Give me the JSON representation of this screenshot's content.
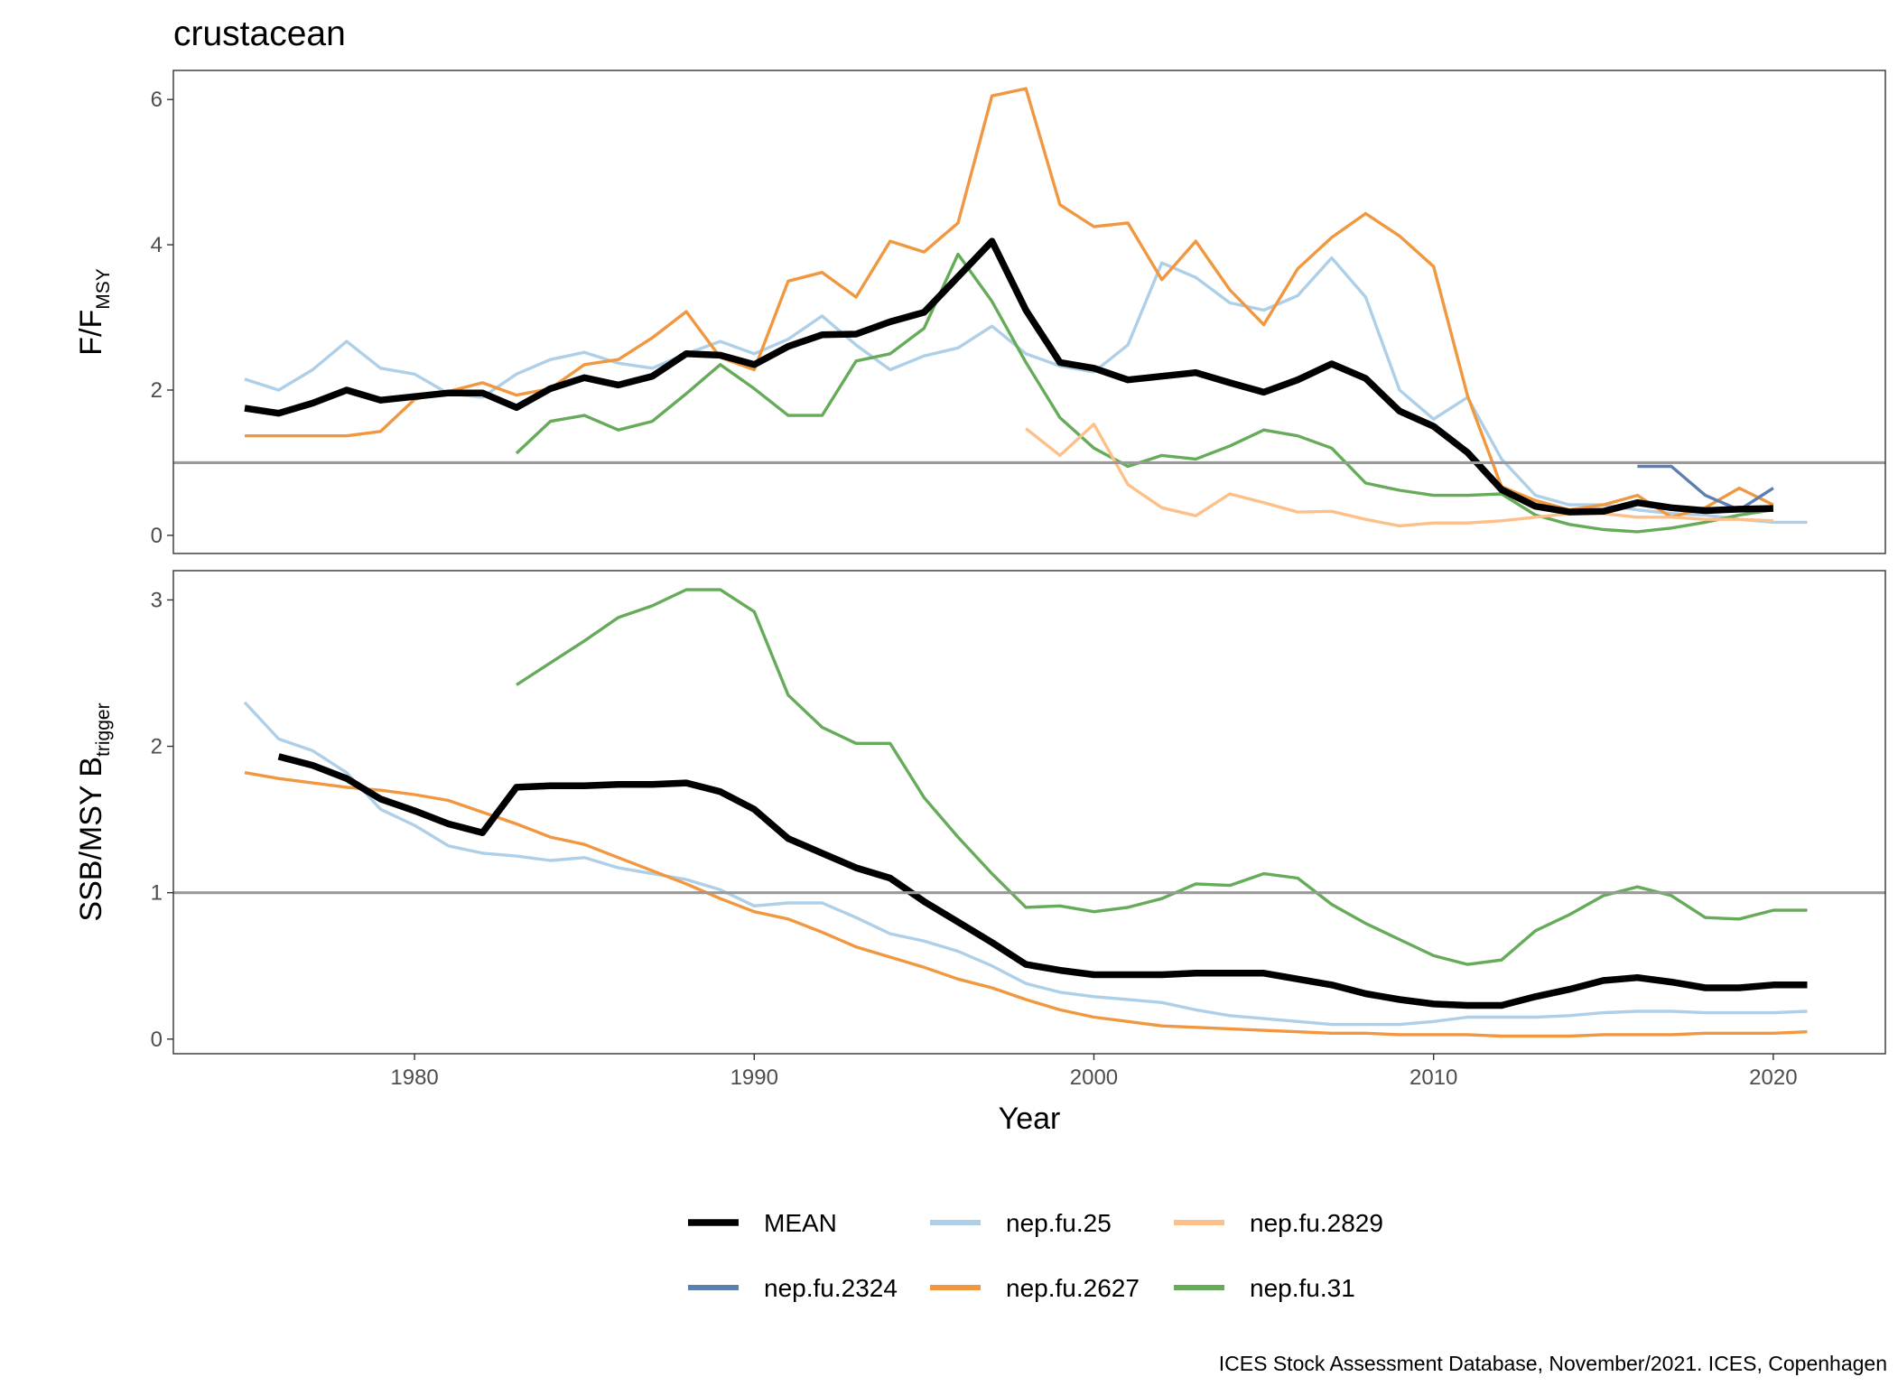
{
  "chart_data": {
    "type": "line",
    "title": "crustacean",
    "xlabel": "Year",
    "x_ticks": [
      1980,
      1990,
      2000,
      2010,
      2020
    ],
    "caption": "ICES Stock Assessment Database, November/2021. ICES, Copenhagen",
    "legend_position": "bottom",
    "series_styles": [
      {
        "name": "MEAN",
        "color": "#000000"
      },
      {
        "name": "nep.fu.25",
        "color": "#aecfe8"
      },
      {
        "name": "nep.fu.2829",
        "color": "#fdc088"
      },
      {
        "name": "nep.fu.2324",
        "color": "#5b7fb0"
      },
      {
        "name": "nep.fu.2627",
        "color": "#f0973f"
      },
      {
        "name": "nep.fu.31",
        "color": "#66ab5a"
      }
    ],
    "legend_rows": [
      [
        "MEAN",
        "nep.fu.25",
        "nep.fu.2829"
      ],
      [
        "nep.fu.2324",
        "nep.fu.2627",
        "nep.fu.31"
      ]
    ],
    "panels": [
      {
        "id": "f",
        "ylabel_main": "F/F",
        "ylabel_sub": "MSY",
        "ylim": [
          -0.25,
          6.4
        ],
        "y_ticks": [
          0,
          2,
          4,
          6
        ],
        "reference_line": 1,
        "series": [
          {
            "name": "nep.fu.25",
            "x": [
              1975,
              1976,
              1977,
              1978,
              1979,
              1980,
              1981,
              1982,
              1983,
              1984,
              1985,
              1986,
              1987,
              1988,
              1989,
              1990,
              1991,
              1992,
              1993,
              1994,
              1995,
              1996,
              1997,
              1998,
              1999,
              2000,
              2001,
              2002,
              2003,
              2004,
              2005,
              2006,
              2007,
              2008,
              2009,
              2010,
              2011,
              2012,
              2013,
              2014,
              2015,
              2016,
              2017,
              2018,
              2019,
              2020,
              2021
            ],
            "y": [
              2.15,
              2.0,
              2.28,
              2.67,
              2.3,
              2.22,
              1.95,
              1.9,
              2.22,
              2.42,
              2.52,
              2.37,
              2.3,
              2.5,
              2.67,
              2.5,
              2.7,
              3.02,
              2.62,
              2.28,
              2.47,
              2.58,
              2.88,
              2.5,
              2.33,
              2.25,
              2.62,
              3.75,
              3.55,
              3.2,
              3.1,
              3.3,
              3.82,
              3.28,
              2.0,
              1.6,
              1.9,
              1.05,
              0.55,
              0.42,
              0.42,
              0.35,
              0.3,
              0.28,
              0.22,
              0.18,
              0.18
            ]
          },
          {
            "name": "nep.fu.2627",
            "x": [
              1975,
              1976,
              1977,
              1978,
              1979,
              1980,
              1981,
              1982,
              1983,
              1984,
              1985,
              1986,
              1987,
              1988,
              1989,
              1990,
              1991,
              1992,
              1993,
              1994,
              1995,
              1996,
              1997,
              1998,
              1999,
              2000,
              2001,
              2002,
              2003,
              2004,
              2005,
              2006,
              2007,
              2008,
              2009,
              2010,
              2011,
              2012,
              2013,
              2014,
              2015,
              2016,
              2017,
              2018,
              2019,
              2020
            ],
            "y": [
              1.37,
              1.37,
              1.37,
              1.37,
              1.43,
              1.87,
              1.98,
              2.1,
              1.93,
              2.02,
              2.35,
              2.42,
              2.72,
              3.08,
              2.45,
              2.28,
              3.5,
              3.62,
              3.28,
              4.05,
              3.9,
              4.3,
              6.05,
              6.15,
              4.55,
              4.25,
              4.3,
              3.52,
              4.05,
              3.38,
              2.9,
              3.67,
              4.1,
              4.43,
              4.12,
              3.7,
              1.92,
              0.67,
              0.48,
              0.35,
              0.42,
              0.55,
              0.25,
              0.38,
              0.65,
              0.42
            ]
          },
          {
            "name": "nep.fu.31",
            "x": [
              1983,
              1984,
              1985,
              1986,
              1987,
              1988,
              1989,
              1990,
              1991,
              1992,
              1993,
              1994,
              1995,
              1996,
              1997,
              1998,
              1999,
              2000,
              2001,
              2002,
              2003,
              2004,
              2005,
              2006,
              2007,
              2008,
              2009,
              2010,
              2011,
              2012,
              2013,
              2014,
              2015,
              2016,
              2017,
              2018,
              2019,
              2020
            ],
            "y": [
              1.13,
              1.57,
              1.65,
              1.45,
              1.57,
              1.95,
              2.35,
              2.02,
              1.65,
              1.65,
              2.4,
              2.5,
              2.85,
              3.87,
              3.22,
              2.38,
              1.62,
              1.2,
              0.95,
              1.1,
              1.05,
              1.23,
              1.45,
              1.37,
              1.2,
              0.72,
              0.62,
              0.55,
              0.55,
              0.57,
              0.28,
              0.15,
              0.08,
              0.05,
              0.1,
              0.18,
              0.28,
              0.35
            ]
          },
          {
            "name": "nep.fu.2829",
            "x": [
              1998,
              1999,
              2000,
              2001,
              2002,
              2003,
              2004,
              2005,
              2006,
              2007,
              2008,
              2009,
              2010,
              2011,
              2012,
              2013,
              2014,
              2015,
              2016,
              2017,
              2018,
              2019,
              2020
            ],
            "y": [
              1.47,
              1.1,
              1.53,
              0.7,
              0.38,
              0.27,
              0.57,
              0.45,
              0.32,
              0.33,
              0.22,
              0.13,
              0.17,
              0.17,
              0.2,
              0.25,
              0.3,
              0.3,
              0.25,
              0.25,
              0.22,
              0.22,
              0.2
            ]
          },
          {
            "name": "nep.fu.2324",
            "x": [
              2016,
              2017,
              2018,
              2019,
              2020
            ],
            "y": [
              0.95,
              0.95,
              0.55,
              0.35,
              0.65
            ]
          },
          {
            "name": "MEAN",
            "x": [
              1975,
              1976,
              1977,
              1978,
              1979,
              1980,
              1981,
              1982,
              1983,
              1984,
              1985,
              1986,
              1987,
              1988,
              1989,
              1990,
              1991,
              1992,
              1993,
              1994,
              1995,
              1996,
              1997,
              1998,
              1999,
              2000,
              2001,
              2002,
              2003,
              2004,
              2005,
              2006,
              2007,
              2008,
              2009,
              2010,
              2011,
              2012,
              2013,
              2014,
              2015,
              2016,
              2017,
              2018,
              2019,
              2020
            ],
            "y": [
              1.75,
              1.68,
              1.82,
              2.0,
              1.86,
              1.91,
              1.96,
              1.96,
              1.76,
              2.02,
              2.17,
              2.07,
              2.19,
              2.5,
              2.48,
              2.35,
              2.6,
              2.76,
              2.77,
              2.94,
              3.07,
              3.56,
              4.05,
              3.1,
              2.38,
              2.3,
              2.14,
              2.19,
              2.24,
              2.1,
              1.97,
              2.14,
              2.36,
              2.16,
              1.71,
              1.5,
              1.14,
              0.63,
              0.4,
              0.32,
              0.33,
              0.45,
              0.38,
              0.34,
              0.36,
              0.37
            ]
          }
        ]
      },
      {
        "id": "ssb",
        "ylabel_main": "SSB/MSY B",
        "ylabel_sub": "trigger",
        "ylim": [
          -0.1,
          3.2
        ],
        "y_ticks": [
          0,
          1,
          2,
          3
        ],
        "reference_line": 1,
        "series": [
          {
            "name": "nep.fu.25",
            "x": [
              1975,
              1976,
              1977,
              1978,
              1979,
              1980,
              1981,
              1982,
              1983,
              1984,
              1985,
              1986,
              1987,
              1988,
              1989,
              1990,
              1991,
              1992,
              1993,
              1994,
              1995,
              1996,
              1997,
              1998,
              1999,
              2000,
              2001,
              2002,
              2003,
              2004,
              2005,
              2006,
              2007,
              2008,
              2009,
              2010,
              2011,
              2012,
              2013,
              2014,
              2015,
              2016,
              2017,
              2018,
              2019,
              2020,
              2021
            ],
            "y": [
              2.3,
              2.05,
              1.97,
              1.82,
              1.57,
              1.46,
              1.32,
              1.27,
              1.25,
              1.22,
              1.24,
              1.17,
              1.13,
              1.09,
              1.02,
              0.91,
              0.93,
              0.93,
              0.83,
              0.72,
              0.67,
              0.6,
              0.5,
              0.38,
              0.32,
              0.29,
              0.27,
              0.25,
              0.2,
              0.16,
              0.14,
              0.12,
              0.1,
              0.1,
              0.1,
              0.12,
              0.15,
              0.15,
              0.15,
              0.16,
              0.18,
              0.19,
              0.19,
              0.18,
              0.18,
              0.18,
              0.19
            ]
          },
          {
            "name": "nep.fu.2627",
            "x": [
              1975,
              1976,
              1977,
              1978,
              1979,
              1980,
              1981,
              1982,
              1983,
              1984,
              1985,
              1986,
              1987,
              1988,
              1989,
              1990,
              1991,
              1992,
              1993,
              1994,
              1995,
              1996,
              1997,
              1998,
              1999,
              2000,
              2001,
              2002,
              2003,
              2004,
              2005,
              2006,
              2007,
              2008,
              2009,
              2010,
              2011,
              2012,
              2013,
              2014,
              2015,
              2016,
              2017,
              2018,
              2019,
              2020,
              2021
            ],
            "y": [
              1.82,
              1.78,
              1.75,
              1.72,
              1.7,
              1.67,
              1.63,
              1.55,
              1.47,
              1.38,
              1.33,
              1.24,
              1.15,
              1.06,
              0.96,
              0.87,
              0.82,
              0.73,
              0.63,
              0.56,
              0.49,
              0.41,
              0.35,
              0.27,
              0.2,
              0.15,
              0.12,
              0.09,
              0.08,
              0.07,
              0.06,
              0.05,
              0.04,
              0.04,
              0.03,
              0.03,
              0.03,
              0.02,
              0.02,
              0.02,
              0.03,
              0.03,
              0.03,
              0.04,
              0.04,
              0.04,
              0.05
            ]
          },
          {
            "name": "nep.fu.31",
            "x": [
              1983,
              1984,
              1985,
              1986,
              1987,
              1988,
              1989,
              1990,
              1991,
              1992,
              1993,
              1994,
              1995,
              1996,
              1997,
              1998,
              1999,
              2000,
              2001,
              2002,
              2003,
              2004,
              2005,
              2006,
              2007,
              2008,
              2009,
              2010,
              2011,
              2012,
              2013,
              2014,
              2015,
              2016,
              2017,
              2018,
              2019,
              2020,
              2021
            ],
            "y": [
              2.42,
              2.57,
              2.72,
              2.88,
              2.96,
              3.07,
              3.07,
              2.92,
              2.35,
              2.13,
              2.02,
              2.02,
              1.65,
              1.38,
              1.13,
              0.9,
              0.91,
              0.87,
              0.9,
              0.96,
              1.06,
              1.05,
              1.13,
              1.1,
              0.92,
              0.79,
              0.68,
              0.57,
              0.51,
              0.54,
              0.74,
              0.85,
              0.98,
              1.04,
              0.98,
              0.83,
              0.82,
              0.88,
              0.88
            ]
          },
          {
            "name": "MEAN",
            "x": [
              1976,
              1977,
              1978,
              1979,
              1980,
              1981,
              1982,
              1983,
              1984,
              1985,
              1986,
              1987,
              1988,
              1989,
              1990,
              1991,
              1992,
              1993,
              1994,
              1995,
              1996,
              1997,
              1998,
              1999,
              2000,
              2001,
              2002,
              2003,
              2004,
              2005,
              2006,
              2007,
              2008,
              2009,
              2010,
              2011,
              2012,
              2013,
              2014,
              2015,
              2016,
              2017,
              2018,
              2019,
              2020,
              2021
            ],
            "y": [
              1.93,
              1.87,
              1.78,
              1.64,
              1.56,
              1.47,
              1.41,
              1.72,
              1.73,
              1.73,
              1.74,
              1.74,
              1.75,
              1.69,
              1.57,
              1.37,
              1.27,
              1.17,
              1.1,
              0.94,
              0.8,
              0.66,
              0.51,
              0.47,
              0.44,
              0.44,
              0.44,
              0.45,
              0.45,
              0.45,
              0.41,
              0.37,
              0.31,
              0.27,
              0.24,
              0.23,
              0.23,
              0.29,
              0.34,
              0.4,
              0.42,
              0.39,
              0.35,
              0.35,
              0.37,
              0.37
            ]
          }
        ]
      }
    ]
  }
}
